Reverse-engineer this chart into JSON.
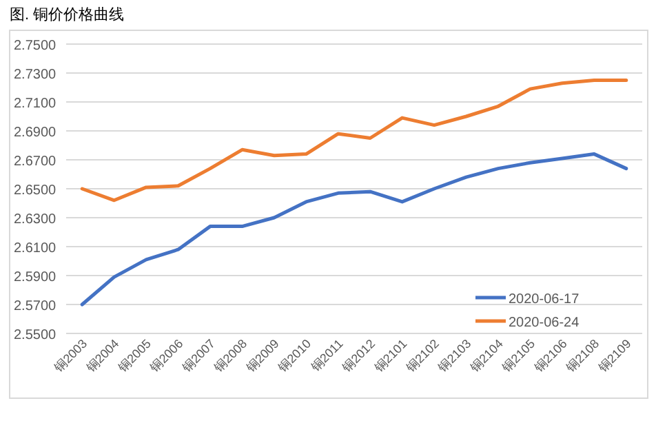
{
  "chart_data": {
    "type": "line",
    "title": "图. 铜价价格曲线",
    "categories": [
      "铜2003",
      "铜2004",
      "铜2005",
      "铜2006",
      "铜2007",
      "铜2008",
      "铜2009",
      "铜2010",
      "铜2011",
      "铜2012",
      "铜2101",
      "铜2102",
      "铜2103",
      "铜2104",
      "铜2105",
      "铜2106",
      "铜2108",
      "铜2109"
    ],
    "series": [
      {
        "name": "2020-06-17",
        "color": "#4472c4",
        "values": [
          2.57,
          2.589,
          2.601,
          2.608,
          2.624,
          2.624,
          2.63,
          2.641,
          2.647,
          2.648,
          2.641,
          2.65,
          2.658,
          2.664,
          2.668,
          2.671,
          2.674,
          2.664
        ]
      },
      {
        "name": "2020-06-24",
        "color": "#ed7d31",
        "values": [
          2.65,
          2.642,
          2.651,
          2.652,
          2.664,
          2.677,
          2.673,
          2.674,
          2.688,
          2.685,
          2.699,
          2.694,
          2.7,
          2.707,
          2.719,
          2.723,
          2.725,
          2.725
        ]
      }
    ],
    "ylim": [
      2.55,
      2.75
    ],
    "yticks": [
      {
        "value": 2.55,
        "label": "2.5500"
      },
      {
        "value": 2.57,
        "label": "2.5700"
      },
      {
        "value": 2.59,
        "label": "2.5900"
      },
      {
        "value": 2.61,
        "label": "2.6100"
      },
      {
        "value": 2.63,
        "label": "2.6300"
      },
      {
        "value": 2.65,
        "label": "2.6500"
      },
      {
        "value": 2.67,
        "label": "2.6700"
      },
      {
        "value": 2.69,
        "label": "2.6900"
      },
      {
        "value": 2.71,
        "label": "2.7100"
      },
      {
        "value": 2.73,
        "label": "2.7300"
      },
      {
        "value": 2.75,
        "label": "2.7500"
      }
    ],
    "grid": "y",
    "legend": "bottom right"
  }
}
